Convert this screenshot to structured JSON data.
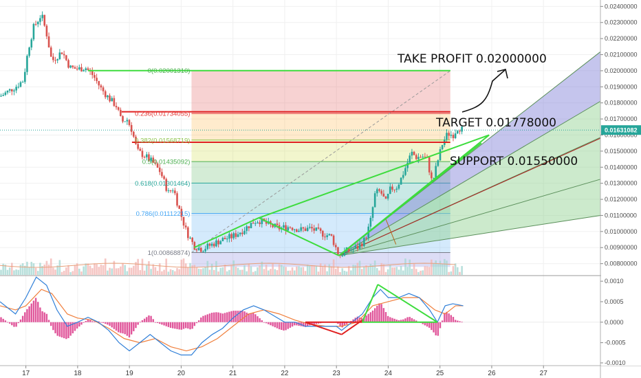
{
  "chart_data": {
    "type": "candlestick",
    "price_axis": {
      "ticks": [
        "0.02400000",
        "0.02300000",
        "0.02200000",
        "0.02100000",
        "0.02000000",
        "0.01900000",
        "0.01800000",
        "0.01700000",
        "0.01600000",
        "0.01500000",
        "0.01400000",
        "0.01300000",
        "0.01200000",
        "0.01100000",
        "0.01000000",
        "0.00900000",
        "0.00800000"
      ],
      "range": [
        0.0073,
        0.0244
      ],
      "current_price": "0.01631082"
    },
    "x_axis": {
      "ticks": [
        "17",
        "18",
        "19",
        "20",
        "21",
        "22",
        "23",
        "24",
        "25",
        "26",
        "27"
      ],
      "range": [
        16.5,
        28.1
      ]
    },
    "macd_axis": {
      "ticks": [
        "0.0010",
        "0.0005",
        "0.0000",
        "-0.0005",
        "-0.0010"
      ],
      "range": [
        -0.00106,
        0.00112
      ]
    },
    "fib_levels": [
      {
        "label": "0(0.02001310)",
        "value": 0.0200131
      },
      {
        "label": "0.236(0.01734055)",
        "value": 0.01734055
      },
      {
        "label": "0.382(0.01568719)",
        "value": 0.01568719
      },
      {
        "label": "0.5(0.01435092)",
        "value": 0.01435092
      },
      {
        "label": "0.618(0.01301464)",
        "value": 0.01301464
      },
      {
        "label": "0.786(0.01112215)",
        "value": 0.01112215
      },
      {
        "label": "1(0.00868874)",
        "value": 0.00868874
      }
    ],
    "fib_x_range": [
      20.2,
      25.2
    ],
    "annotations": {
      "take_profit": "TAKE PROFIT 0.02000000",
      "target": "TARGET 0.01778000",
      "support": "SUPPORT 0.01550000"
    },
    "price_path": [
      [
        16.5,
        0.0184
      ],
      [
        16.8,
        0.019
      ],
      [
        16.95,
        0.0194
      ],
      [
        17.05,
        0.0214
      ],
      [
        17.15,
        0.0227
      ],
      [
        17.3,
        0.0235
      ],
      [
        17.4,
        0.0223
      ],
      [
        17.5,
        0.0206
      ],
      [
        17.7,
        0.0212
      ],
      [
        17.85,
        0.0202
      ],
      [
        18.0,
        0.0201
      ],
      [
        18.15,
        0.0202
      ],
      [
        18.3,
        0.0197
      ],
      [
        18.45,
        0.0189
      ],
      [
        18.6,
        0.0183
      ],
      [
        18.75,
        0.0178
      ],
      [
        18.85,
        0.0168
      ],
      [
        18.95,
        0.017
      ],
      [
        19.05,
        0.0163
      ],
      [
        19.15,
        0.015
      ],
      [
        19.3,
        0.0147
      ],
      [
        19.45,
        0.0143
      ],
      [
        19.6,
        0.0137
      ],
      [
        19.75,
        0.0124
      ],
      [
        19.85,
        0.0127
      ],
      [
        19.95,
        0.0115
      ],
      [
        20.1,
        0.01
      ],
      [
        20.25,
        0.0091
      ],
      [
        20.4,
        0.0089
      ],
      [
        20.6,
        0.0092
      ],
      [
        20.8,
        0.0095
      ],
      [
        21.0,
        0.0097
      ],
      [
        21.2,
        0.0101
      ],
      [
        21.4,
        0.0106
      ],
      [
        21.5,
        0.0107
      ],
      [
        21.7,
        0.0104
      ],
      [
        21.9,
        0.0102
      ],
      [
        22.1,
        0.0103
      ],
      [
        22.3,
        0.0101
      ],
      [
        22.5,
        0.0102
      ],
      [
        22.7,
        0.0099
      ],
      [
        22.9,
        0.0097
      ],
      [
        23.05,
        0.0085
      ],
      [
        23.2,
        0.0088
      ],
      [
        23.4,
        0.009
      ],
      [
        23.55,
        0.0095
      ],
      [
        23.65,
        0.0105
      ],
      [
        23.75,
        0.0124
      ],
      [
        23.85,
        0.0125
      ],
      [
        23.95,
        0.0118
      ],
      [
        24.05,
        0.0127
      ],
      [
        24.15,
        0.0127
      ],
      [
        24.25,
        0.0133
      ],
      [
        24.35,
        0.0141
      ],
      [
        24.45,
        0.0149
      ],
      [
        24.55,
        0.0146
      ],
      [
        24.65,
        0.0147
      ],
      [
        24.75,
        0.0145
      ],
      [
        24.85,
        0.013
      ],
      [
        24.95,
        0.0143
      ],
      [
        25.05,
        0.0155
      ],
      [
        25.15,
        0.0161
      ],
      [
        25.25,
        0.016
      ],
      [
        25.35,
        0.0165
      ],
      [
        25.45,
        0.0163
      ]
    ],
    "pattern_lines": [
      [
        [
          21.5,
          0.01085
        ],
        [
          23.05,
          0.0085
        ]
      ],
      [
        [
          20.25,
          0.009
        ],
        [
          21.5,
          0.01085
        ]
      ],
      [
        [
          21.5,
          0.01085
        ],
        [
          25.95,
          0.016
        ]
      ],
      [
        [
          23.05,
          0.0085
        ],
        [
          25.95,
          0.016
        ]
      ],
      [
        [
          23.05,
          0.0085
        ],
        [
          25.8,
          0.0155
        ]
      ]
    ],
    "resistance_lines": [
      {
        "x": [
          18.85,
          25.2
        ],
        "y": 0.01745
      },
      {
        "x": [
          19.05,
          25.2
        ],
        "y": 0.01555
      }
    ],
    "tp_line": {
      "x": [
        18.2,
        25.2
      ],
      "y": 0.02001
    },
    "fib_diagonal": [
      [
        20.2,
        0.00869
      ],
      [
        25.2,
        0.02
      ]
    ],
    "gann_fan": {
      "origin": [
        23.05,
        0.0085
      ],
      "rays": [
        {
          "end": [
            28.1,
            0.02118
          ],
          "fill": "#7f7fd8"
        },
        {
          "end": [
            28.1,
            0.0181
          ],
          "fill": "#8fd08f"
        },
        {
          "end": [
            28.1,
            0.01585
          ],
          "fill": "#8fd08f"
        },
        {
          "end": [
            28.1,
            0.01325
          ],
          "fill": "#8fd08f"
        },
        {
          "end": [
            28.1,
            0.011
          ],
          "fill": "#7f7fd8"
        }
      ],
      "red_ray_end": [
        28.1,
        0.0158
      ]
    },
    "macd": {
      "macd_line": [
        [
          16.5,
          0.0005
        ],
        [
          16.8,
          0.0002
        ],
        [
          17.0,
          0.0006
        ],
        [
          17.2,
          0.0011
        ],
        [
          17.4,
          0.0009
        ],
        [
          17.6,
          0.0003
        ],
        [
          17.8,
          -0.0001
        ],
        [
          18.0,
          0.0
        ],
        [
          18.2,
          0.00012
        ],
        [
          18.4,
          0.0
        ],
        [
          18.6,
          -0.0002
        ],
        [
          18.8,
          -0.0005
        ],
        [
          19.0,
          -0.0007
        ],
        [
          19.2,
          -0.0005
        ],
        [
          19.4,
          -0.0003
        ],
        [
          19.6,
          -0.0005
        ],
        [
          19.8,
          -0.0007
        ],
        [
          20.0,
          -0.0008
        ],
        [
          20.2,
          -0.0008
        ],
        [
          20.4,
          -0.0005
        ],
        [
          20.6,
          -0.0003
        ],
        [
          20.8,
          -0.00015
        ],
        [
          21.0,
          0.0001
        ],
        [
          21.2,
          0.0003
        ],
        [
          21.4,
          0.0004
        ],
        [
          21.6,
          0.0003
        ],
        [
          21.8,
          0.00015
        ],
        [
          22.0,
          0.0
        ],
        [
          22.2,
          0.0
        ],
        [
          22.4,
          -0.0001
        ],
        [
          22.6,
          -0.0001
        ],
        [
          22.8,
          -0.0001
        ],
        [
          23.0,
          -0.0001
        ],
        [
          23.1,
          -0.0002
        ],
        [
          23.3,
          0.0
        ],
        [
          23.5,
          0.0002
        ],
        [
          23.7,
          0.0006
        ],
        [
          23.85,
          0.0008
        ],
        [
          24.0,
          0.0006
        ],
        [
          24.2,
          0.0006
        ],
        [
          24.4,
          0.0007
        ],
        [
          24.6,
          0.0006
        ],
        [
          24.8,
          0.0003
        ],
        [
          24.95,
          0.0
        ],
        [
          25.1,
          0.0004
        ],
        [
          25.25,
          0.00045
        ],
        [
          25.45,
          0.0004
        ]
      ],
      "signal_line": [
        [
          16.5,
          0.0004
        ],
        [
          16.8,
          0.0003
        ],
        [
          17.0,
          0.0004
        ],
        [
          17.3,
          0.0008
        ],
        [
          17.5,
          0.0007
        ],
        [
          17.8,
          0.0002
        ],
        [
          18.0,
          0.0001
        ],
        [
          18.3,
          5e-05
        ],
        [
          18.6,
          -0.00015
        ],
        [
          18.9,
          -0.0004
        ],
        [
          19.2,
          -0.0005
        ],
        [
          19.5,
          -0.0004
        ],
        [
          19.8,
          -0.0006
        ],
        [
          20.1,
          -0.0007
        ],
        [
          20.4,
          -0.0006
        ],
        [
          20.7,
          -0.0004
        ],
        [
          21.0,
          -0.0001
        ],
        [
          21.3,
          0.0002
        ],
        [
          21.6,
          0.0003
        ],
        [
          21.9,
          0.0002
        ],
        [
          22.2,
          5e-05
        ],
        [
          22.5,
          -5e-05
        ],
        [
          22.8,
          -0.0001
        ],
        [
          23.1,
          -0.0001
        ],
        [
          23.4,
          0.0
        ],
        [
          23.7,
          0.0004
        ],
        [
          24.0,
          0.0005
        ],
        [
          24.3,
          0.0006
        ],
        [
          24.6,
          0.0006
        ],
        [
          24.9,
          0.0003
        ],
        [
          25.1,
          0.0002
        ],
        [
          25.3,
          0.0004
        ],
        [
          25.45,
          0.0004
        ]
      ],
      "pattern_lines": [
        [
          [
            22.4,
            0.0
          ],
          [
            23.1,
            -0.0003
          ]
        ],
        [
          [
            23.1,
            -0.0003
          ],
          [
            23.5,
            5e-05
          ]
        ],
        [
          [
            22.4,
            0.0
          ],
          [
            23.5,
            0.0
          ]
        ],
        [
          [
            23.5,
            0.0
          ],
          [
            23.8,
            0.00092
          ]
        ],
        [
          [
            23.8,
            0.00092
          ],
          [
            24.95,
            0.0
          ]
        ],
        [
          [
            23.5,
            0.0
          ],
          [
            24.95,
            0.0
          ]
        ]
      ]
    }
  }
}
